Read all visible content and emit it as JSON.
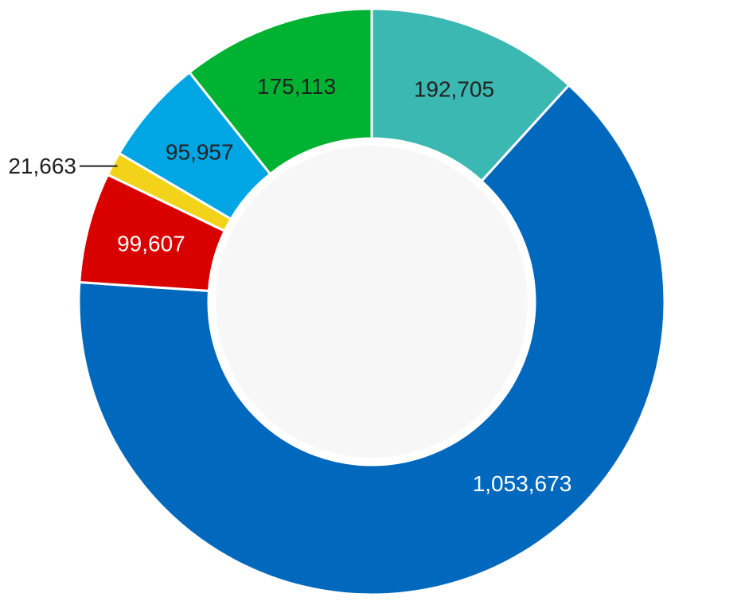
{
  "chart_data": {
    "type": "pie",
    "variant": "donut",
    "slices": [
      {
        "label": "192,705",
        "value": 192705,
        "color": "#3bb8b2",
        "text_color": "#222222"
      },
      {
        "label": "1,053,673",
        "value": 1053673,
        "color": "#0068bd",
        "text_color": "#ffffff"
      },
      {
        "label": "99,607",
        "value": 99607,
        "color": "#d90000",
        "text_color": "#ffffff"
      },
      {
        "label": "21,663",
        "value": 21663,
        "color": "#f2d31a",
        "text_color": "#222222",
        "label_outside": true
      },
      {
        "label": "95,957",
        "value": 95957,
        "color": "#00a6e4",
        "text_color": "#222222"
      },
      {
        "label": "175,113",
        "value": 175113,
        "color": "#00b231",
        "text_color": "#222222"
      }
    ],
    "start_angle": "12 o'clock",
    "direction": "clockwise",
    "center_color": "#f7f7f7"
  }
}
